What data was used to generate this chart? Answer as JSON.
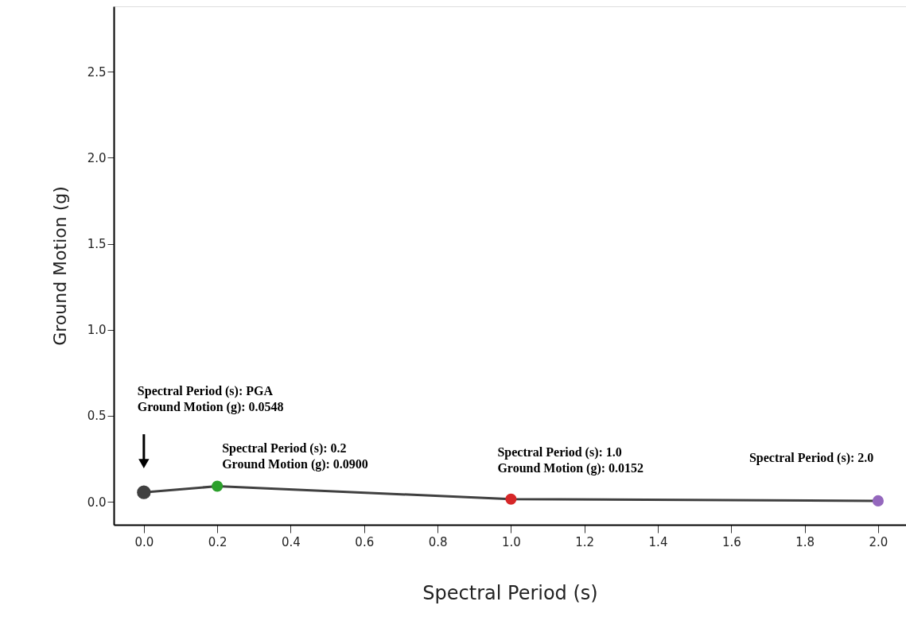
{
  "chart_data": {
    "type": "line",
    "xlabel": "Spectral Period (s)",
    "ylabel": "Ground Motion (g)",
    "x": [
      0,
      0.2,
      1.0,
      2.0
    ],
    "series": [
      {
        "values": [
          0.0548,
          0.09,
          0.0152,
          0.005
        ],
        "color": "#404040",
        "colors": [
          "#404040",
          "#2ca02c",
          "#d62728",
          "#9467bd"
        ]
      }
    ],
    "marker": "circle",
    "line_style": "solid",
    "xlim": [
      -0.082,
      2.076
    ],
    "ylim": [
      -0.134,
      2.88
    ],
    "xticks": [
      {
        "value": 0,
        "label": "0.0"
      },
      {
        "value": 0.2,
        "label": "0.2"
      },
      {
        "value": 0.4,
        "label": "0.4"
      },
      {
        "value": 0.6,
        "label": "0.6"
      },
      {
        "value": 0.8,
        "label": "0.8"
      },
      {
        "value": 1.0,
        "label": "1.0"
      },
      {
        "value": 1.2,
        "label": "1.2"
      },
      {
        "value": 1.4,
        "label": "1.4"
      },
      {
        "value": 1.6,
        "label": "1.6"
      },
      {
        "value": 1.8,
        "label": "1.8"
      },
      {
        "value": 2.0,
        "label": "2.0"
      }
    ],
    "yticks": [
      {
        "value": 0,
        "label": "0.0"
      },
      0.5,
      {
        "value": 1.0,
        "label": "1.0"
      },
      1.5,
      {
        "value": 2.0,
        "label": "2.0"
      },
      2.5
    ],
    "annotations": [
      "Spectral Period (s): PGA\nGround Motion (g): 0.0548",
      {
        "text": "Spectral Period (s): 0.2\nGround Motion (g): 0.0900",
        "x": 0.2,
        "y": 0.09
      },
      {
        "text": "Spectral Period (s): 1.0\nGround Motion (g): 0.0152",
        "x": 1.0,
        "y": 0.0152
      },
      {
        "text": "Spectral Period (s): 2.0",
        "x": 2.0,
        "y": 0.005
      }
    ],
    "grid": false
  }
}
